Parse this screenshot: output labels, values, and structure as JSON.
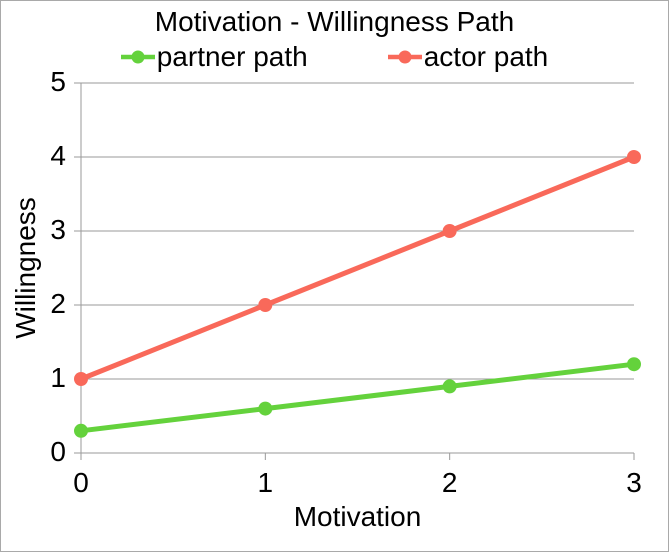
{
  "title": "Motivation - Willingness Path",
  "legend": [
    {
      "label": "partner path",
      "color": "#64D23C"
    },
    {
      "label": "actor path",
      "color": "#F9695A"
    }
  ],
  "axes": {
    "x_title": "Motivation",
    "y_title": "Willingness"
  },
  "colors": {
    "partner_green": "#64D23C",
    "actor_red": "#F9695A",
    "gridline": "#9a9a9a",
    "axis": "#9a9a9a",
    "text": "#000000",
    "border": "#a9a9a9",
    "background": "#ffffff"
  },
  "chart_data": {
    "type": "line",
    "title": "Motivation - Willingness Path",
    "x": [
      0,
      1,
      2,
      3
    ],
    "series": [
      {
        "name": "partner path",
        "color": "#64D23C",
        "values": [
          0.3,
          0.6,
          0.9,
          1.2
        ]
      },
      {
        "name": "actor path",
        "color": "#F9695A",
        "values": [
          1,
          2,
          3,
          4
        ]
      }
    ],
    "xlabel": "Motivation",
    "ylabel": "Willingness",
    "xlim": [
      0,
      3
    ],
    "ylim": [
      0,
      5
    ],
    "xticks": [
      0,
      1,
      2,
      3
    ],
    "yticks": [
      0,
      1,
      2,
      3,
      4,
      5
    ],
    "grid": true,
    "legend_position": "top",
    "line_width": 5,
    "marker_radius": 7
  }
}
